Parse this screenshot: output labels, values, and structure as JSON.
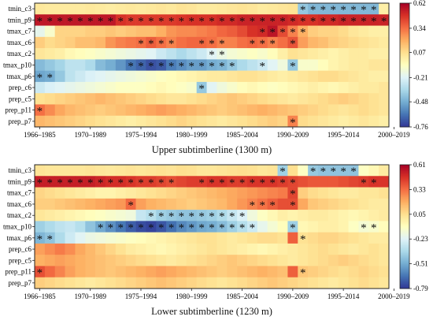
{
  "chart_data": [
    {
      "type": "heatmap",
      "title": "Upper subtimberline (1300 m)",
      "row_labels": [
        "tmin_c3",
        "tmin_p9",
        "tmax_c7",
        "tmax_c6",
        "tmax_c2",
        "tmax_p10",
        "tmax_p6",
        "prep_c6",
        "prep_c5",
        "prep_p11",
        "prep_p7"
      ],
      "x_tick_labels": [
        "1966–1985",
        "1970–1989",
        "1975–1994",
        "1980–1999",
        "1985–2004",
        "1990–2009",
        "1995–2014",
        "2000–2019"
      ],
      "n_windows": 35,
      "colorbar": {
        "min": -0.76,
        "max": 0.62,
        "ticks": [
          0.62,
          0.34,
          0.07,
          -0.21,
          -0.48,
          -0.76
        ],
        "colormap": "RdYlBu_r"
      },
      "values": [
        [
          0.03,
          0.02,
          0.02,
          0.02,
          0.02,
          0.03,
          0.02,
          0.01,
          0.02,
          0.03,
          0.02,
          0.03,
          0.04,
          0.03,
          0.05,
          0.04,
          0.02,
          0.02,
          0.03,
          0.04,
          0.05,
          0.04,
          0.02,
          0.03,
          0.04,
          0.05,
          -0.4,
          -0.45,
          -0.45,
          -0.45,
          -0.45,
          -0.45,
          -0.45,
          -0.45,
          0.0
        ],
        [
          0.55,
          0.55,
          0.55,
          0.55,
          0.55,
          0.55,
          0.55,
          0.55,
          0.48,
          0.46,
          0.46,
          0.46,
          0.46,
          0.46,
          0.47,
          0.48,
          0.48,
          0.48,
          0.5,
          0.5,
          0.52,
          0.52,
          0.52,
          0.52,
          0.52,
          0.5,
          0.48,
          0.48,
          0.5,
          0.5,
          0.52,
          0.52,
          0.52,
          0.52,
          0.52
        ],
        [
          -0.18,
          -0.1,
          0.1,
          0.1,
          0.1,
          0.12,
          0.12,
          0.14,
          0.12,
          0.14,
          0.16,
          0.16,
          0.2,
          0.26,
          0.28,
          0.28,
          0.3,
          0.32,
          0.36,
          0.38,
          0.42,
          0.48,
          0.5,
          0.56,
          0.42,
          0.3,
          0.2,
          0.12,
          0.1,
          0.1,
          0.08,
          0.04,
          0.02,
          0.0,
          0.0
        ],
        [
          0.12,
          0.08,
          0.1,
          0.12,
          0.16,
          0.16,
          0.18,
          0.26,
          0.3,
          0.32,
          0.34,
          0.38,
          0.34,
          0.3,
          0.34,
          0.36,
          0.36,
          0.34,
          0.3,
          0.3,
          0.34,
          0.36,
          0.34,
          0.3,
          0.34,
          0.4,
          0.24,
          0.18,
          0.16,
          0.12,
          0.1,
          0.08,
          0.06,
          0.04,
          0.02
        ],
        [
          0.04,
          0.02,
          0.0,
          -0.04,
          -0.06,
          -0.08,
          -0.1,
          -0.12,
          -0.14,
          -0.16,
          -0.18,
          -0.2,
          -0.26,
          -0.3,
          -0.34,
          -0.3,
          -0.26,
          -0.2,
          -0.16,
          -0.12,
          -0.1,
          -0.08,
          -0.1,
          -0.06,
          0.0,
          0.06,
          0.04,
          0.02,
          0.0,
          -0.02,
          0.0,
          0.02,
          0.02,
          0.0,
          0.0
        ],
        [
          -0.44,
          -0.4,
          -0.36,
          -0.3,
          -0.3,
          -0.34,
          -0.44,
          -0.48,
          -0.54,
          -0.62,
          -0.66,
          -0.7,
          -0.68,
          -0.6,
          -0.56,
          -0.52,
          -0.52,
          -0.48,
          -0.46,
          -0.4,
          -0.34,
          -0.3,
          -0.26,
          -0.2,
          -0.14,
          -0.4,
          -0.1,
          -0.1,
          -0.06,
          -0.02,
          0.0,
          0.02,
          0.02,
          0.04,
          0.04
        ],
        [
          -0.5,
          -0.48,
          -0.4,
          -0.3,
          -0.26,
          -0.22,
          -0.2,
          -0.18,
          -0.16,
          -0.14,
          -0.12,
          -0.1,
          -0.08,
          -0.06,
          -0.04,
          -0.02,
          0.0,
          0.02,
          0.02,
          0.04,
          0.06,
          0.06,
          0.04,
          0.02,
          0.0,
          0.02,
          0.04,
          0.06,
          0.08,
          0.08,
          0.06,
          0.04,
          0.02,
          0.0,
          0.0
        ],
        [
          -0.26,
          -0.22,
          -0.2,
          -0.18,
          -0.16,
          -0.14,
          -0.12,
          -0.1,
          -0.08,
          -0.08,
          -0.08,
          -0.06,
          -0.04,
          -0.06,
          -0.08,
          -0.1,
          -0.4,
          -0.2,
          -0.14,
          -0.1,
          -0.06,
          -0.04,
          -0.06,
          -0.08,
          -0.06,
          -0.04,
          -0.02,
          0.0,
          -0.02,
          -0.04,
          -0.02,
          0.0,
          0.02,
          0.02,
          0.04
        ],
        [
          0.06,
          0.08,
          0.1,
          0.12,
          0.14,
          0.16,
          0.18,
          0.16,
          0.14,
          0.12,
          0.1,
          0.08,
          0.06,
          0.04,
          0.04,
          0.06,
          0.08,
          0.1,
          0.12,
          0.14,
          0.12,
          0.1,
          0.08,
          0.06,
          0.04,
          0.02,
          0.04,
          0.06,
          0.08,
          0.1,
          0.12,
          0.1,
          0.08,
          0.06,
          0.04
        ],
        [
          0.34,
          0.28,
          0.22,
          0.18,
          0.16,
          0.14,
          0.12,
          0.14,
          0.16,
          0.18,
          0.2,
          0.22,
          0.24,
          0.22,
          0.2,
          0.18,
          0.16,
          0.14,
          0.12,
          0.14,
          0.16,
          0.18,
          0.2,
          0.18,
          0.16,
          0.14,
          0.12,
          0.1,
          0.08,
          0.06,
          0.04,
          0.06,
          0.08,
          0.06,
          0.04
        ],
        [
          0.18,
          0.16,
          0.14,
          0.12,
          0.1,
          0.08,
          0.06,
          0.04,
          0.02,
          0.0,
          0.02,
          0.04,
          0.06,
          0.08,
          0.1,
          0.08,
          0.06,
          0.04,
          0.02,
          0.04,
          0.06,
          0.08,
          0.1,
          0.12,
          0.1,
          0.3,
          0.08,
          0.06,
          0.04,
          0.02,
          0.0,
          0.02,
          0.04,
          0.02,
          0.0
        ]
      ],
      "significant": [
        [
          26,
          27,
          28,
          29,
          30,
          31,
          32,
          33
        ],
        [
          0,
          1,
          2,
          3,
          4,
          5,
          6,
          7,
          8,
          9,
          10,
          11,
          12,
          13,
          14,
          15,
          16,
          17,
          18,
          19,
          20,
          21,
          22,
          23,
          24,
          25,
          26,
          27,
          28,
          29,
          30,
          31,
          32,
          33,
          34
        ],
        [
          22,
          23,
          24,
          25,
          26
        ],
        [
          10,
          11,
          12,
          13,
          16,
          17,
          18,
          21,
          22,
          23,
          25
        ],
        [
          17,
          18
        ],
        [
          9,
          10,
          11,
          12,
          13,
          14,
          15,
          16,
          17,
          18,
          19,
          22,
          25
        ],
        [
          0,
          1
        ],
        [
          16
        ],
        [],
        [
          0
        ],
        [
          25
        ]
      ]
    },
    {
      "type": "heatmap",
      "title": "Lower subtimberline (1230 m)",
      "row_labels": [
        "tmin_c3",
        "tmin_p9",
        "tmax_c7",
        "tmax_c6",
        "tmax_c2",
        "tmax_p10",
        "tmax_p6",
        "prep_c6",
        "prep_c5",
        "prep_p11",
        "prep_p7"
      ],
      "x_tick_labels": [
        "1966–1985",
        "1970–1989",
        "1975–1994",
        "1980–1999",
        "1985–2004",
        "1990–2009",
        "1995–2014",
        "2000–2019"
      ],
      "n_windows": 35,
      "colorbar": {
        "min": -0.79,
        "max": 0.61,
        "ticks": [
          0.61,
          0.33,
          0.05,
          -0.23,
          -0.51,
          -0.79
        ],
        "colormap": "RdYlBu_r"
      },
      "values": [
        [
          0.03,
          0.02,
          0.02,
          0.02,
          0.02,
          0.03,
          0.02,
          0.01,
          0.02,
          0.03,
          0.02,
          0.03,
          0.04,
          0.03,
          0.05,
          0.04,
          0.02,
          0.02,
          0.03,
          0.04,
          0.05,
          0.04,
          0.02,
          0.03,
          -0.4,
          0.05,
          -0.1,
          -0.42,
          -0.44,
          -0.44,
          -0.44,
          -0.44,
          -0.1,
          -0.06,
          0.0
        ],
        [
          0.52,
          0.52,
          0.52,
          0.52,
          0.52,
          0.52,
          0.5,
          0.48,
          0.48,
          0.46,
          0.44,
          0.44,
          0.42,
          0.4,
          0.42,
          0.44,
          0.44,
          0.46,
          0.46,
          0.44,
          0.44,
          0.46,
          0.46,
          0.46,
          0.44,
          0.42,
          0.4,
          0.38,
          0.38,
          0.38,
          0.4,
          0.42,
          0.44,
          0.46,
          0.46
        ],
        [
          0.08,
          0.06,
          0.04,
          0.02,
          0.0,
          -0.02,
          -0.04,
          -0.04,
          -0.02,
          0.0,
          0.02,
          0.04,
          0.06,
          0.08,
          0.1,
          0.12,
          0.14,
          0.16,
          0.18,
          0.2,
          0.22,
          0.24,
          0.26,
          0.28,
          0.3,
          0.42,
          0.1,
          0.06,
          0.04,
          0.02,
          0.0,
          0.0,
          0.02,
          0.02,
          0.04
        ],
        [
          0.1,
          0.1,
          0.12,
          0.14,
          0.16,
          0.18,
          0.2,
          0.22,
          0.24,
          0.34,
          0.22,
          0.18,
          0.16,
          0.14,
          0.12,
          0.1,
          0.12,
          0.14,
          0.16,
          0.2,
          0.24,
          0.28,
          0.32,
          0.36,
          0.4,
          0.4,
          0.2,
          0.12,
          0.1,
          0.08,
          0.06,
          0.04,
          0.02,
          0.0,
          0.0
        ],
        [
          0.02,
          0.0,
          -0.02,
          -0.04,
          -0.06,
          -0.08,
          -0.1,
          -0.12,
          -0.14,
          -0.16,
          -0.3,
          -0.34,
          -0.4,
          -0.42,
          -0.44,
          -0.44,
          -0.42,
          -0.4,
          -0.36,
          -0.3,
          -0.24,
          -0.16,
          -0.1,
          -0.06,
          -0.02,
          -0.04,
          -0.02,
          0.0,
          0.0,
          -0.02,
          -0.04,
          -0.06,
          -0.04,
          -0.02,
          0.0
        ],
        [
          -0.4,
          -0.36,
          -0.32,
          -0.3,
          -0.34,
          -0.44,
          -0.52,
          -0.58,
          -0.64,
          -0.7,
          -0.74,
          -0.76,
          -0.72,
          -0.66,
          -0.6,
          -0.56,
          -0.52,
          -0.5,
          -0.46,
          -0.4,
          -0.34,
          -0.28,
          -0.2,
          -0.14,
          -0.08,
          -0.4,
          -0.06,
          -0.04,
          -0.02,
          -0.02,
          -0.04,
          -0.1,
          -0.14,
          -0.12,
          -0.08
        ],
        [
          -0.48,
          -0.44,
          -0.36,
          -0.28,
          -0.22,
          -0.18,
          -0.16,
          -0.14,
          -0.12,
          -0.1,
          -0.08,
          -0.06,
          -0.04,
          -0.02,
          0.0,
          0.02,
          0.04,
          0.04,
          0.02,
          0.0,
          0.02,
          0.04,
          0.06,
          0.06,
          0.04,
          0.36,
          0.04,
          0.06,
          0.08,
          0.08,
          0.06,
          0.04,
          0.02,
          0.0,
          0.0
        ],
        [
          0.22,
          0.26,
          0.3,
          0.26,
          0.2,
          0.16,
          0.12,
          0.08,
          0.04,
          0.0,
          -0.02,
          -0.04,
          -0.06,
          -0.04,
          -0.02,
          0.0,
          0.02,
          0.04,
          0.02,
          0.0,
          -0.02,
          -0.04,
          -0.06,
          -0.04,
          -0.02,
          0.0,
          0.02,
          0.04,
          0.06,
          0.04,
          0.02,
          0.0,
          0.02,
          0.04,
          0.02
        ],
        [
          0.18,
          0.2,
          0.22,
          0.2,
          0.18,
          0.16,
          0.14,
          0.12,
          0.1,
          0.08,
          0.06,
          0.04,
          0.02,
          0.0,
          0.02,
          0.04,
          0.06,
          0.08,
          0.1,
          0.12,
          0.1,
          0.08,
          0.06,
          0.04,
          0.02,
          0.0,
          0.02,
          0.04,
          0.06,
          0.08,
          0.1,
          0.08,
          0.06,
          0.04,
          0.02
        ],
        [
          0.4,
          0.34,
          0.28,
          0.22,
          0.18,
          0.16,
          0.14,
          0.12,
          0.14,
          0.16,
          0.18,
          0.2,
          0.22,
          0.2,
          0.18,
          0.16,
          0.14,
          0.12,
          0.1,
          0.12,
          0.14,
          0.16,
          0.18,
          0.16,
          0.14,
          0.36,
          0.12,
          0.1,
          0.08,
          0.06,
          0.04,
          0.06,
          0.08,
          0.06,
          0.04
        ],
        [
          0.1,
          0.08,
          0.06,
          0.04,
          0.02,
          0.0,
          0.02,
          0.04,
          0.06,
          0.08,
          0.1,
          0.12,
          0.14,
          0.12,
          0.1,
          0.08,
          0.06,
          0.04,
          0.02,
          0.04,
          0.06,
          0.08,
          0.1,
          0.12,
          0.1,
          0.08,
          0.06,
          0.04,
          0.02,
          0.0,
          0.02,
          0.04,
          0.06,
          0.04,
          0.02
        ]
      ],
      "significant": [
        [
          24,
          27,
          28,
          29,
          30,
          31
        ],
        [
          0,
          1,
          2,
          3,
          4,
          5,
          6,
          7,
          8,
          9,
          10,
          11,
          12,
          13,
          16,
          17,
          18,
          19,
          20,
          21,
          22,
          23,
          24,
          25,
          32,
          33
        ],
        [
          25
        ],
        [
          9,
          21,
          22,
          23,
          25
        ],
        [
          11,
          12,
          13,
          14,
          15,
          16,
          17,
          18,
          19,
          20
        ],
        [
          6,
          7,
          8,
          9,
          10,
          11,
          12,
          13,
          14,
          15,
          16,
          17,
          18,
          19,
          20,
          21,
          25,
          32,
          33
        ],
        [
          0,
          1,
          26
        ],
        [],
        [],
        [
          0,
          26
        ],
        []
      ]
    }
  ]
}
